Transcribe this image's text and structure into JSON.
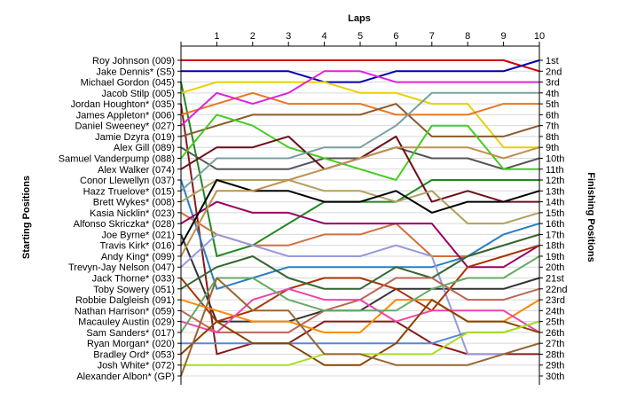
{
  "chart_data": {
    "type": "line",
    "title": "",
    "xlabel": "Laps",
    "ylabel_left": "Starting Positions",
    "ylabel_right": "Finishing Positions",
    "x": [
      0,
      1,
      2,
      3,
      4,
      5,
      6,
      7,
      8,
      9,
      10
    ],
    "x_tick_labels": [
      "1",
      "2",
      "3",
      "4",
      "5",
      "6",
      "7",
      "8",
      "9",
      "10"
    ],
    "ylim": [
      1,
      30
    ],
    "y_inverted": true,
    "grid": "horizontal",
    "starting_labels": [
      "Roy Johnson (009)",
      "Jake Dennis* (S5)",
      "Michael Gordon (045)",
      "Jacob Stilp (005)",
      "Jordan Houghton* (035)",
      "James Appleton* (006)",
      "Daniel Sweeney* (027)",
      "Jamie Dzyra (019)",
      "Alex Gill (089)",
      "Samuel Vanderpump (088)",
      "Alex Walker (074)",
      "Conor Llewellyn (037)",
      "Hazz Truelove* (015)",
      "Brett Wykes* (008)",
      "Kasia Nicklin* (023)",
      "Alfonso Skriczka* (028)",
      "Joe Byrne* (021)",
      "Travis Kirk* (016)",
      "Andy King* (099)",
      "Trevyn-Jay Nelson (047)",
      "Jack Thorne* (033)",
      "Toby Sowery (051)",
      "Robbie Dalgleish (091)",
      "Nathan Harrison* (059)",
      "Macauley Austin (029)",
      "Sam Sanders* (017)",
      "Ryan Morgan* (020)",
      "Bradley Ord* (053)",
      "Josh White* (072)",
      "Alexander Albon* (GP)"
    ],
    "finishing_labels": [
      "1st",
      "2nd",
      "3rd",
      "4th",
      "5th",
      "6th",
      "7th",
      "8th",
      "9th",
      "10th",
      "11th",
      "12th",
      "13th",
      "14th",
      "15th",
      "16th",
      "17th",
      "18th",
      "19th",
      "20th",
      "21st",
      "22nd",
      "23rd",
      "24th",
      "25th",
      "26th",
      "27th",
      "28th",
      "29th",
      "30th"
    ],
    "series": [
      {
        "color": "#cc0000",
        "values": [
          1,
          1,
          1,
          1,
          1,
          1,
          1,
          1,
          1,
          1,
          2
        ]
      },
      {
        "color": "#0000aa",
        "values": [
          2,
          2,
          2,
          2,
          3,
          3,
          2,
          2,
          2,
          2,
          1
        ]
      },
      {
        "color": "#228822",
        "values": [
          3,
          19,
          18,
          16,
          14,
          14,
          14,
          12,
          12,
          12,
          12
        ]
      },
      {
        "color": "#e8d000",
        "values": [
          4,
          3,
          3,
          3,
          3,
          4,
          4,
          5,
          5,
          9,
          9
        ]
      },
      {
        "color": "#8b1a1a",
        "values": [
          5,
          28,
          27,
          27,
          25,
          25,
          25,
          27,
          28,
          28,
          28
        ]
      },
      {
        "color": "#e87722",
        "values": [
          6,
          5,
          4,
          5,
          5,
          5,
          6,
          6,
          6,
          5,
          5
        ]
      },
      {
        "color": "#dd22dd",
        "values": [
          7,
          4,
          5,
          4,
          2,
          2,
          3,
          3,
          3,
          3,
          3
        ]
      },
      {
        "color": "#8b5a2b",
        "values": [
          8,
          7,
          6,
          6,
          6,
          6,
          5,
          8,
          8,
          8,
          7
        ]
      },
      {
        "color": "#555555",
        "values": [
          9,
          11,
          11,
          11,
          10,
          10,
          9,
          10,
          10,
          11,
          10
        ]
      },
      {
        "color": "#44cc22",
        "values": [
          10,
          6,
          7,
          9,
          10,
          11,
          12,
          7,
          7,
          11,
          11
        ]
      },
      {
        "color": "#6b0f1a",
        "values": [
          11,
          9,
          9,
          8,
          11,
          10,
          8,
          14,
          13,
          14,
          14
        ]
      },
      {
        "color": "#2a7fbf",
        "values": [
          12,
          22,
          21,
          20,
          20,
          20,
          20,
          20,
          19,
          17,
          16
        ]
      },
      {
        "color": "#7aa0a0",
        "values": [
          13,
          10,
          10,
          10,
          9,
          9,
          7,
          4,
          4,
          4,
          4
        ]
      },
      {
        "color": "#b0a060",
        "values": [
          14,
          12,
          12,
          12,
          13,
          13,
          14,
          13,
          16,
          16,
          15
        ]
      },
      {
        "color": "#d07040",
        "values": [
          15,
          17,
          18,
          18,
          17,
          17,
          16,
          19,
          19,
          18,
          17
        ]
      },
      {
        "color": "#990066",
        "values": [
          16,
          14,
          15,
          15,
          16,
          16,
          16,
          16,
          20,
          20,
          18
        ]
      },
      {
        "color": "#333333",
        "values": [
          17,
          25,
          25,
          25,
          24,
          24,
          22,
          22,
          22,
          22,
          21
        ]
      },
      {
        "color": "#000000",
        "values": [
          18,
          12,
          13,
          13,
          14,
          14,
          13,
          15,
          14,
          14,
          13
        ]
      },
      {
        "color": "#c09050",
        "values": [
          19,
          13,
          13,
          12,
          11,
          10,
          9,
          9,
          9,
          10,
          9
        ]
      },
      {
        "color": "#9999dd",
        "values": [
          20,
          17,
          18,
          19,
          19,
          19,
          18,
          19,
          28,
          28,
          27
        ]
      },
      {
        "color": "#aa3300",
        "values": [
          21,
          25,
          24,
          22,
          21,
          21,
          22,
          24,
          20,
          19,
          18
        ]
      },
      {
        "color": "#336633",
        "values": [
          22,
          20,
          19,
          21,
          22,
          22,
          20,
          21,
          19,
          18,
          17
        ]
      },
      {
        "color": "#ff8800",
        "values": [
          23,
          24,
          25,
          25,
          26,
          26,
          23,
          23,
          25,
          25,
          23
        ]
      },
      {
        "color": "#bb6655",
        "values": [
          24,
          26,
          26,
          26,
          24,
          23,
          21,
          21,
          23,
          23,
          22
        ]
      },
      {
        "color": "#ee44aa",
        "values": [
          25,
          26,
          23,
          22,
          23,
          23,
          25,
          24,
          24,
          24,
          26
        ]
      },
      {
        "color": "#66aa66",
        "values": [
          26,
          21,
          21,
          23,
          24,
          24,
          24,
          22,
          21,
          21,
          19
        ]
      },
      {
        "color": "#5588dd",
        "values": [
          27,
          27,
          27,
          27,
          27,
          27,
          27,
          27,
          26,
          26,
          25
        ]
      },
      {
        "color": "#884400",
        "values": [
          28,
          25,
          27,
          27,
          29,
          29,
          27,
          23,
          25,
          25,
          26
        ]
      },
      {
        "color": "#aadd22",
        "values": [
          29,
          29,
          29,
          29,
          28,
          28,
          28,
          28,
          26,
          26,
          25
        ]
      },
      {
        "color": "#996633",
        "values": [
          30,
          21,
          24,
          24,
          28,
          28,
          29,
          29,
          29,
          28,
          27
        ]
      }
    ]
  }
}
